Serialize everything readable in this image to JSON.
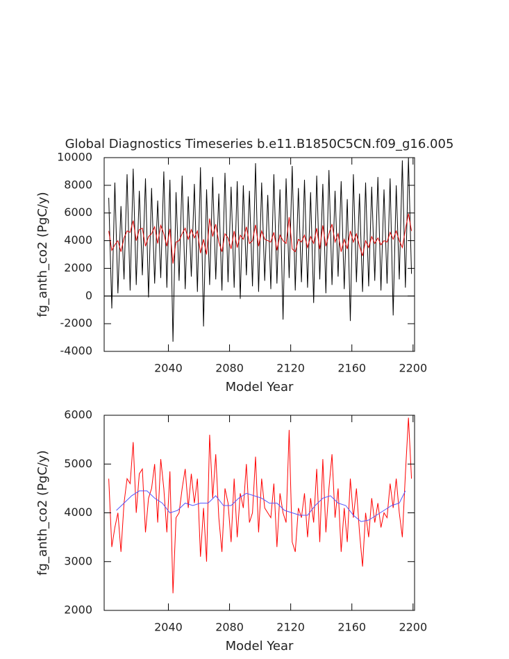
{
  "chart_data": [
    {
      "type": "line",
      "title": "Global Diagnostics Timeseries b.e11.B1850C5CN.f09_g16.005",
      "xlabel": "Model Year",
      "ylabel": "fg_anth_co2 (PgC/y)",
      "xlim": [
        1998,
        2201
      ],
      "xticks": [
        2040,
        2080,
        2120,
        2160,
        2200
      ],
      "ylim": [
        -4000,
        10000
      ],
      "yticks": [
        -4000,
        -2000,
        0,
        2000,
        4000,
        6000,
        8000,
        10000
      ],
      "hlines": [
        0
      ],
      "series": [
        {
          "color": "#000000",
          "x": [
            2001,
            2003,
            2005,
            2007,
            2009,
            2011,
            2013,
            2015,
            2017,
            2019,
            2021,
            2023,
            2025,
            2027,
            2029,
            2031,
            2033,
            2035,
            2037,
            2039,
            2041,
            2043,
            2045,
            2047,
            2049,
            2051,
            2053,
            2055,
            2057,
            2059,
            2061,
            2063,
            2065,
            2067,
            2069,
            2071,
            2073,
            2075,
            2077,
            2079,
            2081,
            2083,
            2085,
            2087,
            2089,
            2091,
            2093,
            2095,
            2097,
            2099,
            2101,
            2103,
            2105,
            2107,
            2109,
            2111,
            2113,
            2115,
            2117,
            2119,
            2121,
            2123,
            2125,
            2127,
            2129,
            2131,
            2133,
            2135,
            2137,
            2139,
            2141,
            2143,
            2145,
            2147,
            2149,
            2151,
            2153,
            2155,
            2157,
            2159,
            2161,
            2163,
            2165,
            2167,
            2169,
            2171,
            2173,
            2175,
            2177,
            2179,
            2181,
            2183,
            2185,
            2187,
            2189,
            2191,
            2193,
            2195,
            2197,
            2199
          ],
          "values": [
            7100,
            -900,
            8200,
            200,
            6500,
            1200,
            8800,
            400,
            9200,
            800,
            7600,
            1500,
            8500,
            -100,
            7800,
            900,
            6900,
            1300,
            9000,
            600,
            8400,
            -3300,
            7500,
            1100,
            8700,
            500,
            7200,
            1400,
            8100,
            300,
            9300,
            -2200,
            7700,
            800,
            8600,
            1200,
            7400,
            400,
            8900,
            1000,
            7900,
            600,
            8300,
            -200,
            8000,
            1500,
            7600,
            700,
            9600,
            300,
            8200,
            1100,
            7300,
            500,
            8800,
            900,
            7700,
            -1700,
            8500,
            1300,
            9400,
            400,
            7800,
            1000,
            8400,
            600,
            7500,
            -500,
            8700,
            1200,
            8100,
            200,
            9100,
            800,
            7600,
            1400,
            8300,
            500,
            7000,
            -1800,
            8800,
            1000,
            7400,
            300,
            8200,
            700,
            7900,
            1100,
            8600,
            400,
            7700,
            900,
            8500,
            -1400,
            8000,
            1200,
            9800,
            600,
            10000,
            1600
          ]
        },
        {
          "color": "#e00000",
          "x": [
            2001,
            2003,
            2005,
            2007,
            2009,
            2011,
            2013,
            2015,
            2017,
            2019,
            2021,
            2023,
            2025,
            2027,
            2029,
            2031,
            2033,
            2035,
            2037,
            2039,
            2041,
            2043,
            2045,
            2047,
            2049,
            2051,
            2053,
            2055,
            2057,
            2059,
            2061,
            2063,
            2065,
            2067,
            2069,
            2071,
            2073,
            2075,
            2077,
            2079,
            2081,
            2083,
            2085,
            2087,
            2089,
            2091,
            2093,
            2095,
            2097,
            2099,
            2101,
            2103,
            2105,
            2107,
            2109,
            2111,
            2113,
            2115,
            2117,
            2119,
            2121,
            2123,
            2125,
            2127,
            2129,
            2131,
            2133,
            2135,
            2137,
            2139,
            2141,
            2143,
            2145,
            2147,
            2149,
            2151,
            2153,
            2155,
            2157,
            2159,
            2161,
            2163,
            2165,
            2167,
            2169,
            2171,
            2173,
            2175,
            2177,
            2179,
            2181,
            2183,
            2185,
            2187,
            2189,
            2191,
            2193,
            2195,
            2197,
            2199
          ],
          "values": [
            4700,
            3300,
            3700,
            4000,
            3200,
            4200,
            4700,
            4600,
            5450,
            4000,
            4800,
            4900,
            3600,
            4300,
            4500,
            5000,
            3800,
            5100,
            4500,
            3600,
            4850,
            2350,
            3900,
            4000,
            4500,
            4900,
            4100,
            4800,
            4200,
            4700,
            3100,
            4100,
            3000,
            5600,
            4300,
            5200,
            3900,
            3200,
            4500,
            4200,
            3400,
            4700,
            3500,
            4400,
            4100,
            5000,
            3800,
            4000,
            5150,
            3600,
            4700,
            4100,
            4000,
            3900,
            4600,
            3300,
            4400,
            4000,
            3800,
            5700,
            3400,
            3200,
            4100,
            3900,
            4400,
            3500,
            4300,
            3800,
            4900,
            3400,
            5100,
            3600,
            4500,
            5200,
            3900,
            4500,
            3200,
            4100,
            3400,
            4700,
            3900,
            4500,
            3600,
            2900,
            4000,
            3500,
            4300,
            3800,
            4200,
            3700,
            4000,
            3900,
            4600,
            4100,
            4700,
            4000,
            3500,
            4800,
            5950,
            4700
          ]
        }
      ]
    },
    {
      "type": "line",
      "xlabel": "Model Year",
      "ylabel": "fg_anth_co2 (PgC/y)",
      "xlim": [
        1998,
        2201
      ],
      "xticks": [
        2040,
        2080,
        2120,
        2160,
        2200
      ],
      "ylim": [
        2000,
        6000
      ],
      "yticks": [
        2000,
        3000,
        4000,
        5000,
        6000
      ],
      "series": [
        {
          "color": "#ff0000",
          "x": [
            2001,
            2003,
            2005,
            2007,
            2009,
            2011,
            2013,
            2015,
            2017,
            2019,
            2021,
            2023,
            2025,
            2027,
            2029,
            2031,
            2033,
            2035,
            2037,
            2039,
            2041,
            2043,
            2045,
            2047,
            2049,
            2051,
            2053,
            2055,
            2057,
            2059,
            2061,
            2063,
            2065,
            2067,
            2069,
            2071,
            2073,
            2075,
            2077,
            2079,
            2081,
            2083,
            2085,
            2087,
            2089,
            2091,
            2093,
            2095,
            2097,
            2099,
            2101,
            2103,
            2105,
            2107,
            2109,
            2111,
            2113,
            2115,
            2117,
            2119,
            2121,
            2123,
            2125,
            2127,
            2129,
            2131,
            2133,
            2135,
            2137,
            2139,
            2141,
            2143,
            2145,
            2147,
            2149,
            2151,
            2153,
            2155,
            2157,
            2159,
            2161,
            2163,
            2165,
            2167,
            2169,
            2171,
            2173,
            2175,
            2177,
            2179,
            2181,
            2183,
            2185,
            2187,
            2189,
            2191,
            2193,
            2195,
            2197,
            2199
          ],
          "values": [
            4700,
            3300,
            3700,
            4000,
            3200,
            4200,
            4700,
            4600,
            5450,
            4000,
            4800,
            4900,
            3600,
            4300,
            4500,
            5000,
            3800,
            5100,
            4500,
            3600,
            4850,
            2350,
            3900,
            4000,
            4500,
            4900,
            4100,
            4800,
            4200,
            4700,
            3100,
            4100,
            3000,
            5600,
            4300,
            5200,
            3900,
            3200,
            4500,
            4200,
            3400,
            4700,
            3500,
            4400,
            4100,
            5000,
            3800,
            4000,
            5150,
            3600,
            4700,
            4100,
            4000,
            3900,
            4600,
            3300,
            4400,
            4000,
            3800,
            5700,
            3400,
            3200,
            4100,
            3900,
            4400,
            3500,
            4300,
            3800,
            4900,
            3400,
            5100,
            3600,
            4500,
            5200,
            3900,
            4500,
            3200,
            4100,
            3400,
            4700,
            3900,
            4500,
            3600,
            2900,
            4000,
            3500,
            4300,
            3800,
            4200,
            3700,
            4000,
            3900,
            4600,
            4100,
            4700,
            4000,
            3500,
            4800,
            5950,
            4700
          ]
        },
        {
          "color": "#5555ff",
          "x": [
            2006,
            2011,
            2016,
            2021,
            2026,
            2031,
            2036,
            2041,
            2046,
            2051,
            2056,
            2061,
            2066,
            2071,
            2076,
            2081,
            2086,
            2091,
            2096,
            2101,
            2106,
            2111,
            2116,
            2121,
            2126,
            2131,
            2136,
            2141,
            2146,
            2151,
            2156,
            2161,
            2166,
            2171,
            2176,
            2181,
            2186,
            2191,
            2195
          ],
          "values": [
            4050,
            4200,
            4350,
            4450,
            4450,
            4300,
            4200,
            4000,
            4050,
            4200,
            4150,
            4200,
            4200,
            4350,
            4150,
            4150,
            4300,
            4400,
            4350,
            4300,
            4200,
            4200,
            4050,
            4000,
            3950,
            3950,
            4150,
            4300,
            4350,
            4200,
            4150,
            3950,
            3820,
            3850,
            3950,
            4050,
            4150,
            4200,
            4450
          ]
        }
      ]
    }
  ]
}
